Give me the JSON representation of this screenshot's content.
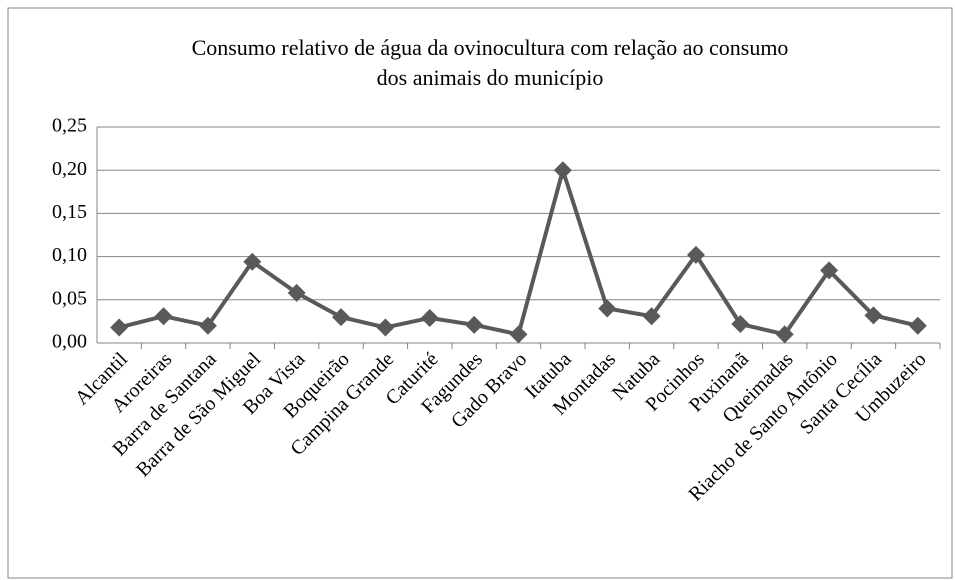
{
  "chart_data": {
    "type": "line",
    "title": [
      "Consumo relativo de água da ovinocultura com relação ao consumo",
      "dos animais do município"
    ],
    "categories": [
      "Alcantil",
      "Aroreiras",
      "Barra de Santana",
      "Barra de São Miguel",
      "Boa Vista",
      "Boqueirão",
      "Campina Grande",
      "Caturité",
      "Fagundes",
      "Gado Bravo",
      "Itatuba",
      "Montadas",
      "Natuba",
      "Pocinhos",
      "Puxinanã",
      "Queimadas",
      "Riacho de Santo Antônio",
      "Santa Cecília",
      "Umbuzeiro"
    ],
    "values": [
      0.018,
      0.031,
      0.02,
      0.094,
      0.058,
      0.03,
      0.018,
      0.029,
      0.021,
      0.01,
      0.2,
      0.04,
      0.031,
      0.102,
      0.022,
      0.01,
      0.084,
      0.032,
      0.02
    ],
    "color": "#595959",
    "ylim": [
      0,
      0.25
    ],
    "yticks": [
      {
        "value": 0,
        "label": "0,00"
      },
      {
        "value": 0.05,
        "label": "0,05"
      },
      {
        "value": 0.1,
        "label": "0,10"
      },
      {
        "value": 0.15,
        "label": "0,15"
      },
      {
        "value": 0.2,
        "label": "0,20"
      },
      {
        "value": 0.25,
        "label": "0,25"
      }
    ],
    "grid": true
  }
}
